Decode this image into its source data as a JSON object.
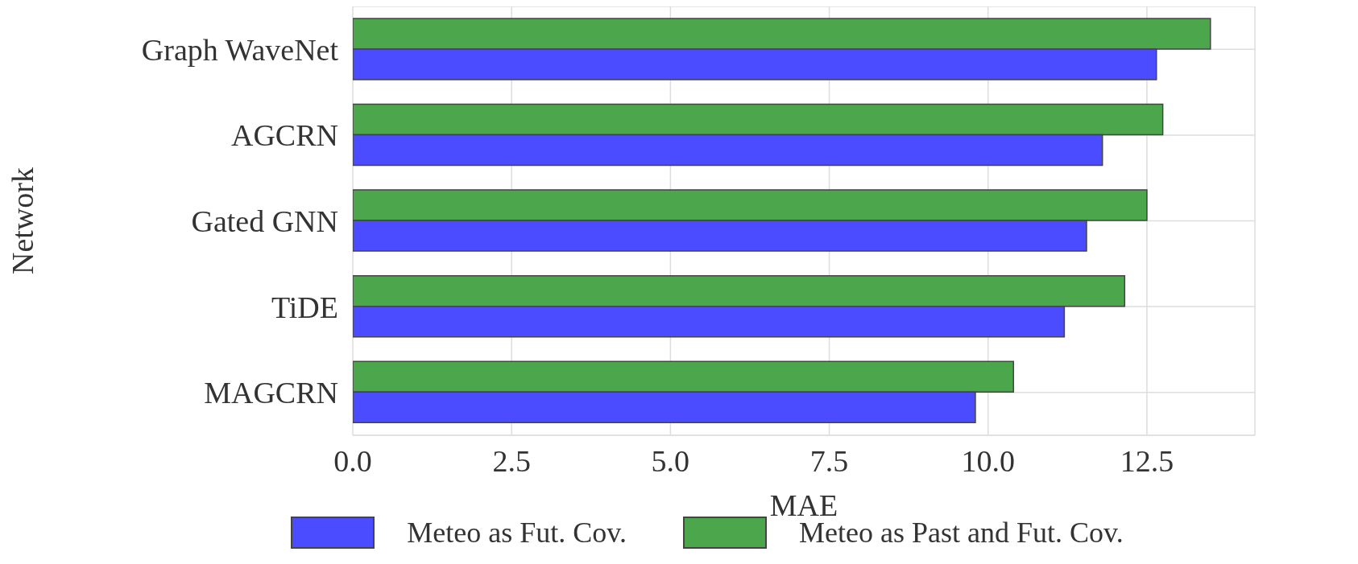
{
  "chart_data": {
    "type": "bar",
    "orientation": "horizontal",
    "categories": [
      "Graph WaveNet",
      "AGCRN",
      "Gated GNN",
      "TiDE",
      "MAGCRN"
    ],
    "series": [
      {
        "name": "Meteo as Fut. Cov.",
        "color": "#4b4bff",
        "values": [
          12.65,
          11.8,
          11.55,
          11.2,
          9.8
        ]
      },
      {
        "name": "Meteo as Past and Fut. Cov.",
        "color": "#4ca64c",
        "values": [
          13.5,
          12.75,
          12.5,
          12.15,
          10.4
        ]
      }
    ],
    "xlabel": "MAE",
    "ylabel": "Network",
    "xlim": [
      0,
      14.2
    ],
    "xticks": [
      {
        "value": 0,
        "label": "0.0"
      },
      2.5,
      {
        "value": 5,
        "label": "5.0"
      },
      7.5,
      {
        "value": 10,
        "label": "10.0"
      },
      12.5
    ],
    "grid": true,
    "legend": "bottom"
  }
}
